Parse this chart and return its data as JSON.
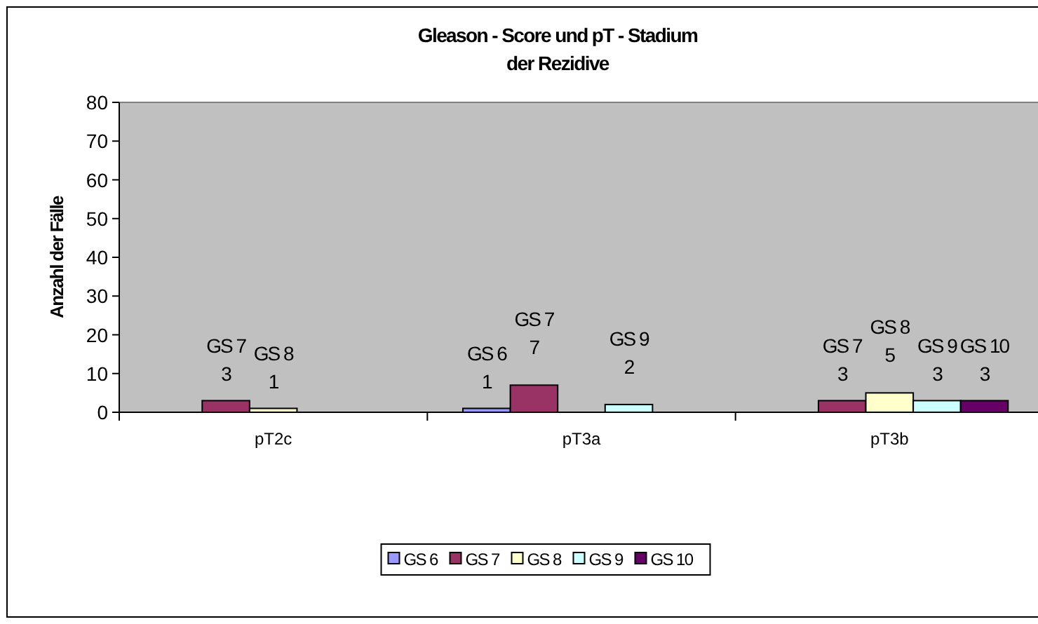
{
  "chart_data": {
    "type": "bar",
    "title": "Gleason - Score und pT - Stadium\nder Rezidive",
    "ylabel": "Anzahl der Fälle",
    "categories": [
      "pT2c",
      "pT3a",
      "pT3b"
    ],
    "series": [
      {
        "name": "GS 6",
        "color": "#9999ff",
        "values": [
          null,
          1,
          null
        ]
      },
      {
        "name": "GS 7",
        "color": "#993366",
        "values": [
          3,
          7,
          3
        ]
      },
      {
        "name": "GS 8",
        "color": "#ffffcc",
        "values": [
          1,
          null,
          5
        ]
      },
      {
        "name": "GS 9",
        "color": "#ccffff",
        "values": [
          null,
          2,
          3
        ]
      },
      {
        "name": "GS 10",
        "color": "#660066",
        "values": [
          null,
          null,
          3
        ]
      }
    ],
    "ylim": [
      0,
      80
    ],
    "yticks": [
      0,
      10,
      20,
      30,
      40,
      50,
      60,
      70,
      80
    ],
    "data_labels": true,
    "legend": "bottom",
    "grid": false
  }
}
